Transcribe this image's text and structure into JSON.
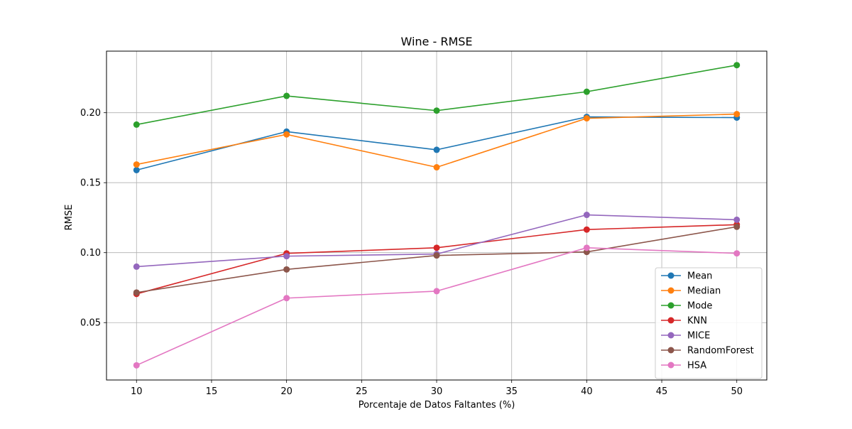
{
  "chart_data": {
    "type": "line",
    "title": "Wine - RMSE",
    "xlabel": "Porcentaje de Datos Faltantes (%)",
    "ylabel": "RMSE",
    "x": [
      10,
      20,
      30,
      40,
      50
    ],
    "xlim": [
      8,
      52
    ],
    "ylim": [
      0.009,
      0.244
    ],
    "xticks": [
      10,
      15,
      20,
      25,
      30,
      35,
      40,
      45,
      50
    ],
    "xtick_labels": [
      "10",
      "15",
      "20",
      "25",
      "30",
      "35",
      "40",
      "45",
      "50"
    ],
    "yticks": [
      0.05,
      0.1,
      0.15,
      0.2
    ],
    "ytick_labels": [
      "0.05",
      "0.10",
      "0.15",
      "0.20"
    ],
    "grid": true,
    "legend_position": "bottom-right",
    "marker": "circle",
    "series": [
      {
        "name": "Mean",
        "color": "#1f77b4",
        "values": [
          0.159,
          0.1865,
          0.1735,
          0.197,
          0.1965
        ]
      },
      {
        "name": "Median",
        "color": "#ff7f0e",
        "values": [
          0.163,
          0.1845,
          0.161,
          0.196,
          0.199
        ]
      },
      {
        "name": "Mode",
        "color": "#2ca02c",
        "values": [
          0.1915,
          0.212,
          0.2015,
          0.215,
          0.234
        ]
      },
      {
        "name": "KNN",
        "color": "#d62728",
        "values": [
          0.0705,
          0.0995,
          0.1035,
          0.1165,
          0.12
        ]
      },
      {
        "name": "MICE",
        "color": "#9467bd",
        "values": [
          0.09,
          0.0975,
          0.099,
          0.127,
          0.1235
        ]
      },
      {
        "name": "RandomForest",
        "color": "#8c564b",
        "values": [
          0.0715,
          0.088,
          0.098,
          0.1005,
          0.1185
        ]
      },
      {
        "name": "HSA",
        "color": "#e377c2",
        "values": [
          0.0195,
          0.0675,
          0.0725,
          0.1035,
          0.0995
        ]
      }
    ]
  }
}
